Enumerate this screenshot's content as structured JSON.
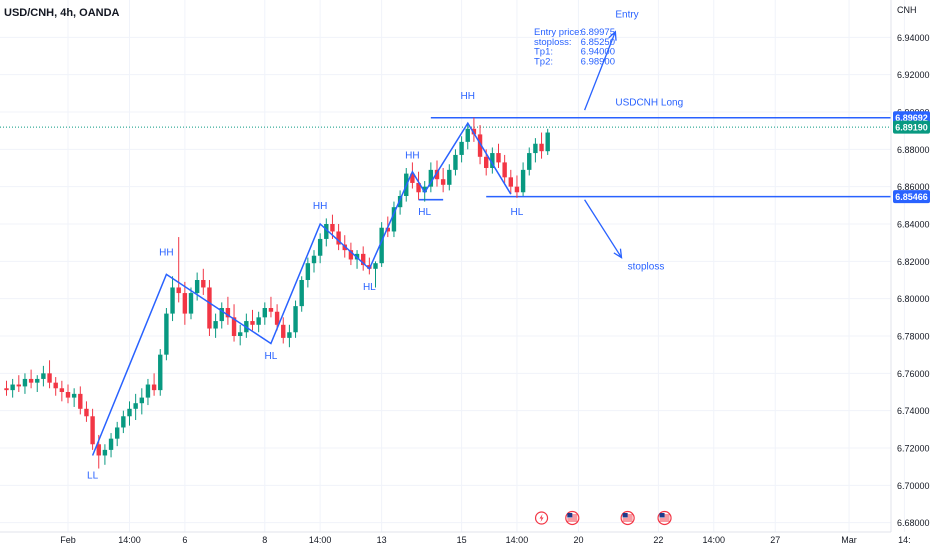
{
  "header": {
    "symbol_label": "USD/CNH, 4h, OANDA",
    "currency": "CNH"
  },
  "colors": {
    "up": "#089981",
    "down": "#f23645",
    "drawing": "#2962ff",
    "price_line": "#089981",
    "axis_text": "#131722"
  },
  "chart_data": {
    "type": "candlestick",
    "title": "USD/CNH, 4h, OANDA",
    "y_unit": "CNH",
    "ylim": [
      6.675,
      6.96
    ],
    "y_ticks": [
      6.68,
      6.7,
      6.72,
      6.74,
      6.76,
      6.78,
      6.8,
      6.82,
      6.84,
      6.86,
      6.88,
      6.9,
      6.92,
      6.94
    ],
    "y_tick_labels": [
      "6.68000",
      "6.70000",
      "6.72000",
      "6.74000",
      "6.76000",
      "6.78000",
      "6.80000",
      "6.82000",
      "6.84000",
      "6.86000",
      "6.88000",
      "6.90000",
      "6.92000",
      "6.94000"
    ],
    "x_tick_labels": [
      {
        "label": "Feb",
        "bar": 10
      },
      {
        "label": "14:00",
        "bar": 20
      },
      {
        "label": "6",
        "bar": 29
      },
      {
        "label": "8",
        "bar": 42
      },
      {
        "label": "14:00",
        "bar": 51
      },
      {
        "label": "13",
        "bar": 61
      },
      {
        "label": "15",
        "bar": 74
      },
      {
        "label": "14:00",
        "bar": 83
      },
      {
        "label": "20",
        "bar": 93
      },
      {
        "label": "22",
        "bar": 106
      },
      {
        "label": "14:00",
        "bar": 115
      },
      {
        "label": "27",
        "bar": 125
      },
      {
        "label": "Mar",
        "bar": 137
      },
      {
        "label": "14:",
        "bar": 146
      }
    ],
    "candles_ohlc": [
      [
        6.752,
        6.756,
        6.748,
        6.751
      ],
      [
        6.751,
        6.757,
        6.747,
        6.754
      ],
      [
        6.754,
        6.759,
        6.75,
        6.753
      ],
      [
        6.753,
        6.76,
        6.749,
        6.757
      ],
      [
        6.757,
        6.762,
        6.752,
        6.755
      ],
      [
        6.755,
        6.759,
        6.75,
        6.757
      ],
      [
        6.757,
        6.764,
        6.753,
        6.76
      ],
      [
        6.76,
        6.767,
        6.752,
        6.755
      ],
      [
        6.755,
        6.758,
        6.748,
        6.752
      ],
      [
        6.752,
        6.756,
        6.745,
        6.75
      ],
      [
        6.75,
        6.754,
        6.744,
        6.747
      ],
      [
        6.747,
        6.752,
        6.742,
        6.749
      ],
      [
        6.749,
        6.753,
        6.738,
        6.741
      ],
      [
        6.741,
        6.745,
        6.734,
        6.737
      ],
      [
        6.737,
        6.741,
        6.719,
        6.722
      ],
      [
        6.722,
        6.727,
        6.709,
        6.716
      ],
      [
        6.716,
        6.722,
        6.711,
        6.719
      ],
      [
        6.719,
        6.728,
        6.715,
        6.725
      ],
      [
        6.725,
        6.734,
        6.721,
        6.731
      ],
      [
        6.731,
        6.74,
        6.728,
        6.737
      ],
      [
        6.737,
        6.745,
        6.732,
        6.741
      ],
      [
        6.741,
        6.749,
        6.735,
        6.744
      ],
      [
        6.744,
        6.752,
        6.738,
        6.747
      ],
      [
        6.747,
        6.757,
        6.743,
        6.754
      ],
      [
        6.754,
        6.76,
        6.748,
        6.751
      ],
      [
        6.751,
        6.773,
        6.748,
        6.77
      ],
      [
        6.77,
        6.795,
        6.767,
        6.792
      ],
      [
        6.792,
        6.812,
        6.788,
        6.806
      ],
      [
        6.806,
        6.833,
        6.798,
        6.803
      ],
      [
        6.803,
        6.809,
        6.786,
        6.792
      ],
      [
        6.792,
        6.806,
        6.789,
        6.803
      ],
      [
        6.803,
        6.814,
        6.799,
        6.81
      ],
      [
        6.81,
        6.816,
        6.802,
        6.806
      ],
      [
        6.806,
        6.81,
        6.78,
        6.784
      ],
      [
        6.784,
        6.792,
        6.779,
        6.788
      ],
      [
        6.788,
        6.798,
        6.784,
        6.795
      ],
      [
        6.795,
        6.801,
        6.786,
        6.79
      ],
      [
        6.79,
        6.797,
        6.777,
        6.78
      ],
      [
        6.78,
        6.786,
        6.775,
        6.782
      ],
      [
        6.782,
        6.792,
        6.779,
        6.788
      ],
      [
        6.788,
        6.794,
        6.783,
        6.786
      ],
      [
        6.786,
        6.793,
        6.782,
        6.79
      ],
      [
        6.79,
        6.798,
        6.786,
        6.795
      ],
      [
        6.795,
        6.801,
        6.79,
        6.793
      ],
      [
        6.793,
        6.797,
        6.783,
        6.786
      ],
      [
        6.786,
        6.79,
        6.776,
        6.779
      ],
      [
        6.779,
        6.786,
        6.774,
        6.782
      ],
      [
        6.782,
        6.799,
        6.779,
        6.796
      ],
      [
        6.796,
        6.812,
        6.793,
        6.81
      ],
      [
        6.81,
        6.822,
        6.806,
        6.819
      ],
      [
        6.819,
        6.826,
        6.814,
        6.823
      ],
      [
        6.823,
        6.835,
        6.819,
        6.832
      ],
      [
        6.832,
        6.843,
        6.828,
        6.84
      ],
      [
        6.84,
        6.845,
        6.832,
        6.836
      ],
      [
        6.836,
        6.84,
        6.826,
        6.829
      ],
      [
        6.829,
        6.834,
        6.822,
        6.826
      ],
      [
        6.826,
        6.83,
        6.818,
        6.821
      ],
      [
        6.821,
        6.826,
        6.816,
        6.824
      ],
      [
        6.824,
        6.828,
        6.815,
        6.818
      ],
      [
        6.818,
        6.822,
        6.813,
        6.816
      ],
      [
        6.816,
        6.82,
        6.806,
        6.819
      ],
      [
        6.819,
        6.841,
        6.817,
        6.838
      ],
      [
        6.838,
        6.844,
        6.833,
        6.836
      ],
      [
        6.836,
        6.852,
        6.833,
        6.849
      ],
      [
        6.849,
        6.858,
        6.845,
        6.855
      ],
      [
        6.855,
        6.87,
        6.852,
        6.867
      ],
      [
        6.867,
        6.873,
        6.859,
        6.862
      ],
      [
        6.862,
        6.868,
        6.853,
        6.857
      ],
      [
        6.857,
        6.863,
        6.852,
        6.86
      ],
      [
        6.86,
        6.873,
        6.857,
        6.869
      ],
      [
        6.869,
        6.874,
        6.86,
        6.864
      ],
      [
        6.864,
        6.87,
        6.857,
        6.861
      ],
      [
        6.861,
        6.872,
        6.858,
        6.869
      ],
      [
        6.869,
        6.88,
        6.866,
        6.877
      ],
      [
        6.877,
        6.887,
        6.873,
        6.884
      ],
      [
        6.884,
        6.894,
        6.88,
        6.891
      ],
      [
        6.891,
        6.897,
        6.884,
        6.888
      ],
      [
        6.888,
        6.893,
        6.872,
        6.876
      ],
      [
        6.876,
        6.88,
        6.866,
        6.87
      ],
      [
        6.87,
        6.881,
        6.867,
        6.878
      ],
      [
        6.878,
        6.883,
        6.87,
        6.873
      ],
      [
        6.873,
        6.877,
        6.862,
        6.865
      ],
      [
        6.865,
        6.869,
        6.856,
        6.86
      ],
      [
        6.86,
        6.866,
        6.854,
        6.857
      ],
      [
        6.857,
        6.873,
        6.855,
        6.869
      ],
      [
        6.869,
        6.881,
        6.866,
        6.878
      ],
      [
        6.878,
        6.886,
        6.873,
        6.883
      ],
      [
        6.883,
        6.889,
        6.875,
        6.879
      ],
      [
        6.879,
        6.891,
        6.877,
        6.889
      ]
    ],
    "annotations": [
      {
        "text": "LL",
        "bar": 14,
        "price": 6.708,
        "pos": "below"
      },
      {
        "text": "HH",
        "bar": 26,
        "price": 6.823,
        "pos": "above"
      },
      {
        "text": "HL",
        "bar": 43,
        "price": 6.772,
        "pos": "below"
      },
      {
        "text": "HH",
        "bar": 51,
        "price": 6.848,
        "pos": "above"
      },
      {
        "text": "HL",
        "bar": 59,
        "price": 6.809,
        "pos": "below"
      },
      {
        "text": "HH",
        "bar": 66,
        "price": 6.875,
        "pos": "above"
      },
      {
        "text": "HL",
        "bar": 68,
        "price": 6.849,
        "pos": "below"
      },
      {
        "text": "HH",
        "bar": 75,
        "price": 6.907,
        "pos": "above"
      },
      {
        "text": "HL",
        "bar": 83,
        "price": 6.849,
        "pos": "below"
      }
    ],
    "zigzag": [
      [
        14,
        6.716
      ],
      [
        26,
        6.813
      ],
      [
        43,
        6.776
      ],
      [
        51,
        6.84
      ],
      [
        59,
        6.816
      ],
      [
        66,
        6.868
      ],
      [
        68,
        6.857
      ],
      [
        75,
        6.894
      ],
      [
        82,
        6.856
      ]
    ],
    "levels": [
      {
        "label": "6.89692",
        "price": 6.89692,
        "from_bar": 69
      },
      {
        "label": "6.85466",
        "price": 6.85466,
        "from_bar": 78
      }
    ],
    "short_lines": [
      {
        "price": 6.853,
        "from_bar": 67,
        "to_bar": 71
      }
    ],
    "current_price": {
      "label": "6.89190",
      "price": 6.8919
    },
    "texts": [
      {
        "id": "usdcnh-long",
        "text": "USDCNH Long",
        "bar": 99,
        "price": 6.9035
      },
      {
        "id": "entry",
        "text": "Entry",
        "bar": 99,
        "price": 6.9505
      },
      {
        "id": "stoploss",
        "text": "stoploss",
        "bar": 101,
        "price": 6.8157
      }
    ],
    "arrows": [
      {
        "from": [
          94,
          6.901
        ],
        "to": [
          99,
          6.943
        ]
      },
      {
        "from": [
          94,
          6.853
        ],
        "to": [
          100,
          6.822
        ]
      }
    ],
    "trade_info": [
      {
        "label": "Entry price:",
        "value": "6.89975"
      },
      {
        "label": "stoploss:",
        "value": "6.85250"
      },
      {
        "label": "Tp1:",
        "value": "6.94000"
      },
      {
        "label": "Tp2:",
        "value": "6.98900"
      }
    ],
    "events_row": [
      {
        "type": "flash-icon",
        "bar": 87
      },
      {
        "type": "us-flag-icon",
        "bar": 92
      },
      {
        "type": "us-flag-icon",
        "bar": 101
      },
      {
        "type": "us-flag-icon",
        "bar": 107
      }
    ]
  }
}
